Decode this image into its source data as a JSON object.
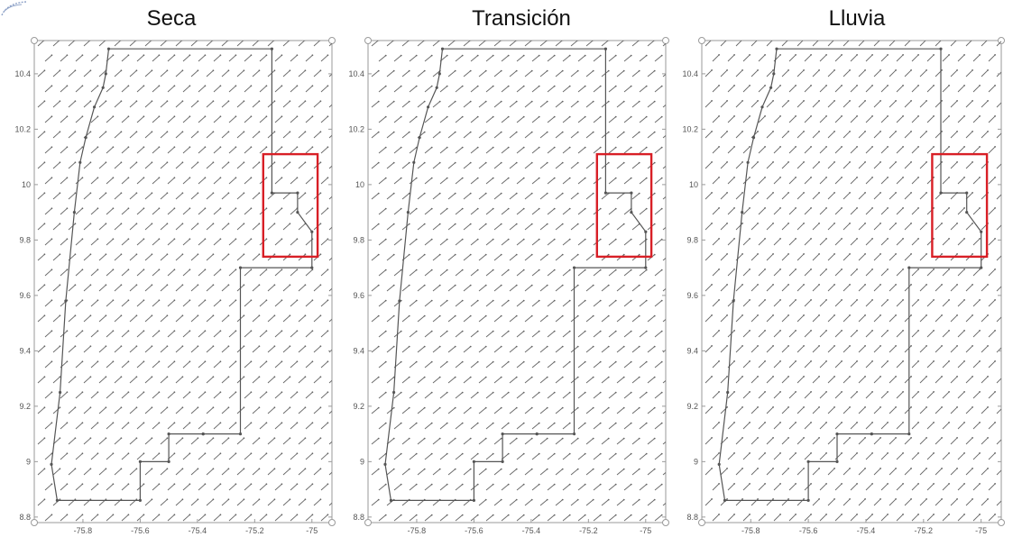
{
  "chart_data": [
    {
      "type": "vector-field",
      "title": "Seca",
      "xlabel": "",
      "ylabel": "",
      "x_ticks": [
        "-75.8",
        "-75.6",
        "-75.4",
        "-75.2",
        "-75"
      ],
      "y_ticks": [
        "8.8",
        "9",
        "9.2",
        "9.4",
        "9.6",
        "9.8",
        "10",
        "10.2",
        "10.4"
      ],
      "x_tick_values": [
        -75.8,
        -75.6,
        -75.4,
        -75.2,
        -75.0
      ],
      "y_tick_values": [
        8.8,
        9.0,
        9.2,
        9.4,
        9.6,
        9.8,
        10.0,
        10.2,
        10.4
      ],
      "xlim": [
        -75.97,
        -74.93
      ],
      "ylim": [
        8.78,
        10.52
      ],
      "field_direction_deg": 42,
      "region_box": {
        "lon": [
          -75.17,
          -74.98
        ],
        "lat": [
          9.74,
          10.11
        ]
      },
      "boundary": {
        "lon": [
          -75.71,
          -75.72,
          -75.73,
          -75.76,
          -75.79,
          -75.81,
          -75.83,
          -75.86,
          -75.88,
          -75.91,
          -75.89,
          -75.6,
          -75.6,
          -75.5,
          -75.5,
          -75.38,
          -75.38,
          -75.25,
          -75.25,
          -75.0,
          -75.0,
          -75.05,
          -75.05,
          -75.14,
          -75.14
        ],
        "lat": [
          10.49,
          10.4,
          10.35,
          10.28,
          10.17,
          10.08,
          9.9,
          9.58,
          9.25,
          8.99,
          8.86,
          8.86,
          9.0,
          9.0,
          9.1,
          9.1,
          9.1,
          9.1,
          9.7,
          9.7,
          9.83,
          9.9,
          9.97,
          9.97,
          10.49
        ]
      }
    },
    {
      "type": "vector-field",
      "title": "Transición",
      "xlabel": "",
      "ylabel": "",
      "x_ticks": [
        "-75.8",
        "-75.6",
        "-75.4",
        "-75.2",
        "-75"
      ],
      "y_ticks": [
        "8.8",
        "9",
        "9.2",
        "9.4",
        "9.6",
        "9.8",
        "10",
        "10.2",
        "10.4"
      ],
      "x_tick_values": [
        -75.8,
        -75.6,
        -75.4,
        -75.2,
        -75.0
      ],
      "y_tick_values": [
        8.8,
        9.0,
        9.2,
        9.4,
        9.6,
        9.8,
        10.0,
        10.2,
        10.4
      ],
      "xlim": [
        -75.97,
        -74.93
      ],
      "ylim": [
        8.78,
        10.52
      ],
      "field_direction_deg": 40,
      "region_box": {
        "lon": [
          -75.17,
          -74.98
        ],
        "lat": [
          9.74,
          10.11
        ]
      },
      "boundary": {
        "lon": [
          -75.71,
          -75.72,
          -75.73,
          -75.76,
          -75.79,
          -75.81,
          -75.83,
          -75.86,
          -75.88,
          -75.91,
          -75.89,
          -75.6,
          -75.6,
          -75.5,
          -75.5,
          -75.38,
          -75.38,
          -75.25,
          -75.25,
          -75.0,
          -75.0,
          -75.05,
          -75.05,
          -75.14,
          -75.14
        ],
        "lat": [
          10.49,
          10.4,
          10.35,
          10.28,
          10.17,
          10.08,
          9.9,
          9.58,
          9.25,
          8.99,
          8.86,
          8.86,
          9.0,
          9.0,
          9.1,
          9.1,
          9.1,
          9.1,
          9.7,
          9.7,
          9.83,
          9.9,
          9.97,
          9.97,
          10.49
        ]
      }
    },
    {
      "type": "vector-field",
      "title": "Lluvia",
      "xlabel": "",
      "ylabel": "",
      "x_ticks": [
        "-75.8",
        "-75.6",
        "-75.4",
        "-75.2",
        "-75"
      ],
      "y_ticks": [
        "8.8",
        "9",
        "9.2",
        "9.4",
        "9.6",
        "9.8",
        "10",
        "10.2",
        "10.4"
      ],
      "x_tick_values": [
        -75.8,
        -75.6,
        -75.4,
        -75.2,
        -75.0
      ],
      "y_tick_values": [
        8.8,
        9.0,
        9.2,
        9.4,
        9.6,
        9.8,
        10.0,
        10.2,
        10.4
      ],
      "xlim": [
        -75.97,
        -74.93
      ],
      "ylim": [
        8.78,
        10.52
      ],
      "field_direction_deg": 45,
      "region_box": {
        "lon": [
          -75.17,
          -74.98
        ],
        "lat": [
          9.74,
          10.11
        ]
      },
      "boundary": {
        "lon": [
          -75.71,
          -75.72,
          -75.73,
          -75.76,
          -75.79,
          -75.81,
          -75.83,
          -75.86,
          -75.88,
          -75.91,
          -75.89,
          -75.6,
          -75.6,
          -75.5,
          -75.5,
          -75.38,
          -75.38,
          -75.25,
          -75.25,
          -75.0,
          -75.0,
          -75.05,
          -75.05,
          -75.14,
          -75.14
        ],
        "lat": [
          10.49,
          10.4,
          10.35,
          10.28,
          10.17,
          10.08,
          9.9,
          9.58,
          9.25,
          8.99,
          8.86,
          8.86,
          9.0,
          9.0,
          9.1,
          9.1,
          9.1,
          9.1,
          9.7,
          9.7,
          9.83,
          9.9,
          9.97,
          9.97,
          10.49
        ]
      }
    }
  ],
  "colors": {
    "region_box": "#d81f26",
    "boundary": "#555555",
    "arrows": "#666666",
    "frame": "#9a9a9a",
    "logo": "#8fa3c8"
  },
  "icons": {
    "corner_logo": "institution-logo"
  }
}
